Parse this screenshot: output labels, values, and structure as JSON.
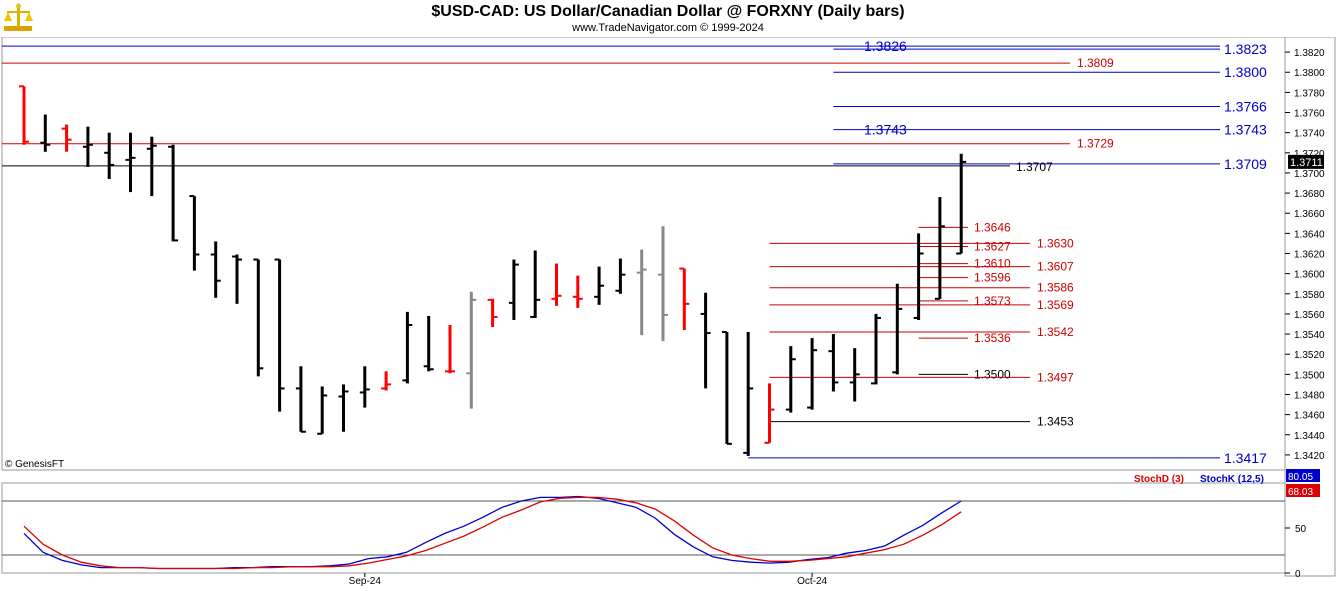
{
  "header": {
    "title": "$USD-CAD:  US Dollar/Canadian Dollar @ FORXNY  (Daily bars)",
    "subtitle": "www.TradeNavigator.com © 1999-2024"
  },
  "watermark": "© GenesisFT",
  "colors": {
    "up": "#000000",
    "down": "#ff0000",
    "neutral": "#888888",
    "level_red": "#cc0000",
    "level_blue": "#0000cc",
    "stoch_k": "#0000cc",
    "stoch_d": "#dd0000"
  },
  "chart_data": [
    {
      "type": "ohlc",
      "title": "$USD-CAD:  US Dollar/Canadian Dollar @ FORXNY  (Daily bars)",
      "y_axis": {
        "range": [
          1.3405,
          1.3835
        ],
        "ticks": [
          "1.3420",
          "1.3440",
          "1.3460",
          "1.3480",
          "1.3500",
          "1.3520",
          "1.3540",
          "1.3560",
          "1.3580",
          "1.3600",
          "1.3620",
          "1.3640",
          "1.3660",
          "1.3680",
          "1.3700",
          "1.3720",
          "1.3740",
          "1.3760",
          "1.3780",
          "1.3800",
          "1.3820"
        ],
        "last_price": "1.3711"
      },
      "x_axis": {
        "labels": [
          {
            "text": "Sep-24",
            "bar": 16
          },
          {
            "text": "Oct-24",
            "bar": 37
          }
        ]
      },
      "bars": [
        {
          "o": 1.3786,
          "h": 1.3786,
          "l": 1.3728,
          "c": 1.3731,
          "color": "down"
        },
        {
          "o": 1.373,
          "h": 1.3758,
          "l": 1.3721,
          "c": 1.3728,
          "color": "up"
        },
        {
          "o": 1.3744,
          "h": 1.3748,
          "l": 1.3721,
          "c": 1.3733,
          "color": "down"
        },
        {
          "o": 1.3726,
          "h": 1.3746,
          "l": 1.3706,
          "c": 1.3728,
          "color": "up"
        },
        {
          "o": 1.372,
          "h": 1.374,
          "l": 1.3694,
          "c": 1.3708,
          "color": "up"
        },
        {
          "o": 1.3713,
          "h": 1.374,
          "l": 1.3681,
          "c": 1.3715,
          "color": "up"
        },
        {
          "o": 1.3724,
          "h": 1.3736,
          "l": 1.3677,
          "c": 1.3727,
          "color": "up"
        },
        {
          "o": 1.3726,
          "h": 1.3728,
          "l": 1.3632,
          "c": 1.3633,
          "color": "up"
        },
        {
          "o": 1.3677,
          "h": 1.3677,
          "l": 1.3603,
          "c": 1.3619,
          "color": "up"
        },
        {
          "o": 1.3619,
          "h": 1.3632,
          "l": 1.3576,
          "c": 1.3593,
          "color": "up"
        },
        {
          "o": 1.3617,
          "h": 1.3619,
          "l": 1.357,
          "c": 1.3614,
          "color": "up"
        },
        {
          "o": 1.3614,
          "h": 1.3614,
          "l": 1.3498,
          "c": 1.3506,
          "color": "up"
        },
        {
          "o": 1.3614,
          "h": 1.3614,
          "l": 1.3463,
          "c": 1.3486,
          "color": "up"
        },
        {
          "o": 1.3486,
          "h": 1.3508,
          "l": 1.3443,
          "c": 1.3443,
          "color": "up"
        },
        {
          "o": 1.3441,
          "h": 1.3488,
          "l": 1.3441,
          "c": 1.3479,
          "color": "up"
        },
        {
          "o": 1.3478,
          "h": 1.349,
          "l": 1.3443,
          "c": 1.3483,
          "color": "up"
        },
        {
          "o": 1.3482,
          "h": 1.3508,
          "l": 1.3467,
          "c": 1.3485,
          "color": "up"
        },
        {
          "o": 1.3486,
          "h": 1.3503,
          "l": 1.3484,
          "c": 1.349,
          "color": "down"
        },
        {
          "o": 1.3494,
          "h": 1.3562,
          "l": 1.3491,
          "c": 1.3549,
          "color": "up"
        },
        {
          "o": 1.3508,
          "h": 1.3558,
          "l": 1.3503,
          "c": 1.3505,
          "color": "up"
        },
        {
          "o": 1.3503,
          "h": 1.3549,
          "l": 1.3501,
          "c": 1.3503,
          "color": "down"
        },
        {
          "o": 1.3501,
          "h": 1.3582,
          "l": 1.3466,
          "c": 1.3574,
          "color": "neutral"
        },
        {
          "o": 1.3574,
          "h": 1.3575,
          "l": 1.3547,
          "c": 1.3557,
          "color": "down"
        },
        {
          "o": 1.3571,
          "h": 1.3614,
          "l": 1.3554,
          "c": 1.3609,
          "color": "up"
        },
        {
          "o": 1.3557,
          "h": 1.3623,
          "l": 1.3556,
          "c": 1.3574,
          "color": "up"
        },
        {
          "o": 1.3575,
          "h": 1.361,
          "l": 1.3568,
          "c": 1.3578,
          "color": "down"
        },
        {
          "o": 1.3577,
          "h": 1.3598,
          "l": 1.3566,
          "c": 1.3575,
          "color": "down"
        },
        {
          "o": 1.3577,
          "h": 1.3607,
          "l": 1.3569,
          "c": 1.3588,
          "color": "up"
        },
        {
          "o": 1.3583,
          "h": 1.3615,
          "l": 1.358,
          "c": 1.3599,
          "color": "up"
        },
        {
          "o": 1.3601,
          "h": 1.3624,
          "l": 1.3539,
          "c": 1.3604,
          "color": "neutral"
        },
        {
          "o": 1.3599,
          "h": 1.3647,
          "l": 1.3533,
          "c": 1.3559,
          "color": "neutral"
        },
        {
          "o": 1.3605,
          "h": 1.3605,
          "l": 1.3544,
          "c": 1.357,
          "color": "down"
        },
        {
          "o": 1.356,
          "h": 1.3581,
          "l": 1.3486,
          "c": 1.3541,
          "color": "up"
        },
        {
          "o": 1.3542,
          "h": 1.3542,
          "l": 1.3431,
          "c": 1.3431,
          "color": "up"
        },
        {
          "o": 1.3422,
          "h": 1.3542,
          "l": 1.3419,
          "c": 1.3486,
          "color": "up"
        },
        {
          "o": 1.3432,
          "h": 1.3491,
          "l": 1.3432,
          "c": 1.3465,
          "color": "down"
        },
        {
          "o": 1.3465,
          "h": 1.3528,
          "l": 1.3462,
          "c": 1.3515,
          "color": "up"
        },
        {
          "o": 1.3467,
          "h": 1.3536,
          "l": 1.3465,
          "c": 1.3524,
          "color": "up"
        },
        {
          "o": 1.3523,
          "h": 1.354,
          "l": 1.3483,
          "c": 1.3492,
          "color": "up"
        },
        {
          "o": 1.3492,
          "h": 1.3526,
          "l": 1.3473,
          "c": 1.35,
          "color": "up"
        },
        {
          "o": 1.3491,
          "h": 1.356,
          "l": 1.349,
          "c": 1.3556,
          "color": "up"
        },
        {
          "o": 1.3502,
          "h": 1.359,
          "l": 1.35,
          "c": 1.3565,
          "color": "up"
        },
        {
          "o": 1.3556,
          "h": 1.364,
          "l": 1.3554,
          "c": 1.362,
          "color": "up"
        },
        {
          "o": 1.3575,
          "h": 1.3676,
          "l": 1.3575,
          "c": 1.3647,
          "color": "up"
        },
        {
          "o": 1.362,
          "h": 1.3719,
          "l": 1.362,
          "c": 1.3711,
          "color": "up"
        }
      ],
      "levels": [
        {
          "price": "1.3826",
          "color": "blue",
          "x_start_bar": -1,
          "label_side": "left"
        },
        {
          "price": "1.3823",
          "color": "blue",
          "x_start_bar": 38,
          "label_side": "right"
        },
        {
          "price": "1.3809",
          "color": "red",
          "x_start_bar": -1,
          "label_side": "mid"
        },
        {
          "price": "1.3800",
          "color": "blue",
          "x_start_bar": 38,
          "label_side": "right"
        },
        {
          "price": "1.3766",
          "color": "blue",
          "x_start_bar": 38,
          "label_side": "right"
        },
        {
          "price": "1.3743",
          "color": "blue",
          "x_start_bar": 38,
          "label_side": "both"
        },
        {
          "price": "1.3729",
          "color": "red",
          "x_start_bar": -1,
          "label_side": "mid"
        },
        {
          "price": "1.3709",
          "color": "blue",
          "x_start_bar": 38,
          "label_side": "right"
        },
        {
          "price": "1.3707",
          "color": "black",
          "x_start_bar": -1,
          "label_side": "black"
        },
        {
          "price": "1.3646",
          "color": "red",
          "x_start_bar": 42,
          "label_side": "inner"
        },
        {
          "price": "1.3630",
          "color": "red",
          "x_start_bar": 35,
          "label_side": "mid"
        },
        {
          "price": "1.3627",
          "color": "red",
          "x_start_bar": 42,
          "label_side": "inner"
        },
        {
          "price": "1.3610",
          "color": "red",
          "x_start_bar": 42,
          "label_side": "inner"
        },
        {
          "price": "1.3607",
          "color": "red",
          "x_start_bar": 35,
          "label_side": "mid"
        },
        {
          "price": "1.3596",
          "color": "red",
          "x_start_bar": 42,
          "label_side": "inner"
        },
        {
          "price": "1.3586",
          "color": "red",
          "x_start_bar": 35,
          "label_side": "mid"
        },
        {
          "price": "1.3573",
          "color": "red",
          "x_start_bar": 42,
          "label_side": "inner"
        },
        {
          "price": "1.3569",
          "color": "red",
          "x_start_bar": 35,
          "label_side": "mid"
        },
        {
          "price": "1.3542",
          "color": "red",
          "x_start_bar": 35,
          "label_side": "mid"
        },
        {
          "price": "1.3536",
          "color": "red",
          "x_start_bar": 42,
          "label_side": "inner"
        },
        {
          "price": "1.3500",
          "color": "black",
          "x_start_bar": 42,
          "label_side": "inner"
        },
        {
          "price": "1.3497",
          "color": "red",
          "x_start_bar": 35,
          "label_side": "mid"
        },
        {
          "price": "1.3453",
          "color": "black",
          "x_start_bar": 35,
          "label_side": "mid"
        },
        {
          "price": "1.3417",
          "color": "blue",
          "x_start_bar": 34,
          "label_side": "right"
        }
      ]
    },
    {
      "type": "line",
      "y_axis": {
        "range": [
          0,
          100
        ],
        "ticks": [
          "0",
          "50"
        ]
      },
      "legend": [
        "StochD (3)",
        "StochK (12,5)"
      ],
      "series": [
        {
          "name": "StochK (12,5)",
          "color": "blue",
          "last": "80.05",
          "values": [
            44,
            23,
            14,
            9,
            6,
            6,
            6,
            5,
            5,
            5,
            5,
            6,
            6,
            7,
            7,
            7,
            8,
            10,
            16,
            18,
            23,
            34,
            44,
            52,
            62,
            73,
            80,
            84,
            84,
            85,
            83,
            78,
            73,
            61,
            43,
            29,
            18,
            14,
            12,
            11,
            12,
            15,
            17,
            22,
            25,
            30,
            42,
            53,
            67,
            80
          ]
        },
        {
          "name": "StochD (3)",
          "color": "red",
          "last": "68.03",
          "values": [
            52,
            32,
            20,
            12,
            8,
            6,
            6,
            5,
            5,
            5,
            5,
            5,
            6,
            6,
            7,
            7,
            7,
            8,
            11,
            15,
            19,
            25,
            33,
            41,
            51,
            62,
            70,
            79,
            83,
            84,
            84,
            82,
            78,
            71,
            58,
            42,
            28,
            20,
            16,
            13,
            13,
            14,
            16,
            18,
            22,
            26,
            32,
            42,
            54,
            68
          ]
        }
      ]
    }
  ]
}
